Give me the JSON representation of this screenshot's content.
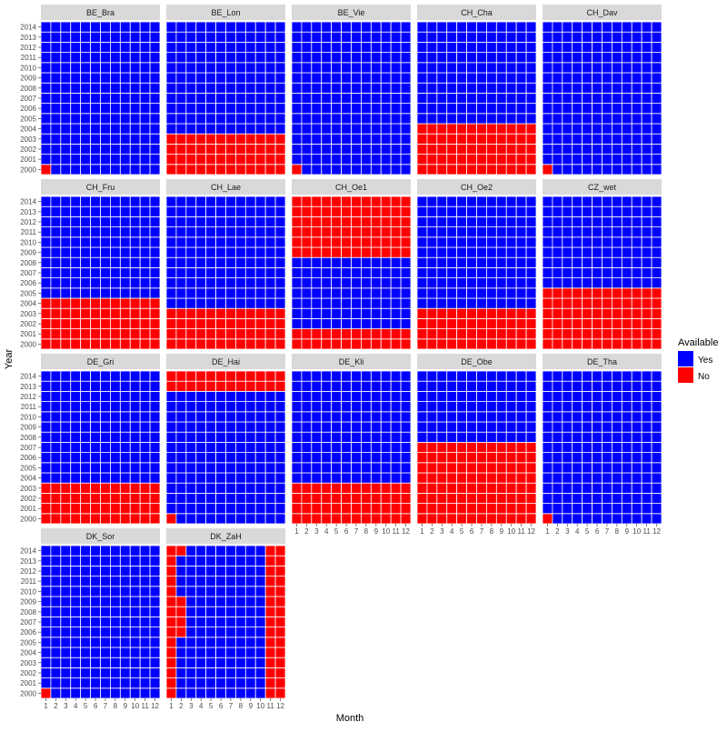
{
  "chart_data": {
    "type": "heatmap",
    "title": "",
    "xlabel": "Month",
    "ylabel": "Year",
    "months": [
      "1",
      "2",
      "3",
      "4",
      "5",
      "6",
      "7",
      "8",
      "9",
      "10",
      "11",
      "12"
    ],
    "years": [
      "2000",
      "2001",
      "2002",
      "2003",
      "2004",
      "2005",
      "2006",
      "2007",
      "2008",
      "2009",
      "2010",
      "2011",
      "2012",
      "2013",
      "2014"
    ],
    "legend": {
      "title": "Available",
      "placement": "right",
      "entries": [
        {
          "label": "Yes",
          "color": "#0000FF"
        },
        {
          "label": "No",
          "color": "#FF0000"
        }
      ]
    },
    "colors": {
      "yes": "#0000FF",
      "no": "#FF0000",
      "strip": "#D9D9D9",
      "grid": "#FFFFFF"
    },
    "note_unavailable_cells_format": "each station lists its unavailable (No) cells as [year, month] or year ranges; all other cells are Yes",
    "stations": [
      {
        "name": "BE_Bra",
        "no_cells": [
          [
            2000,
            1
          ]
        ]
      },
      {
        "name": "BE_Lon",
        "no_years": [
          2000,
          2001,
          2002,
          2003
        ]
      },
      {
        "name": "BE_Vie",
        "no_cells": [
          [
            2000,
            1
          ]
        ]
      },
      {
        "name": "CH_Cha",
        "no_years": [
          2000,
          2001,
          2002,
          2003,
          2004
        ]
      },
      {
        "name": "CH_Dav",
        "no_cells": [
          [
            2000,
            1
          ]
        ]
      },
      {
        "name": "CH_Fru",
        "no_years": [
          2000,
          2001,
          2002,
          2003,
          2004
        ]
      },
      {
        "name": "CH_Lae",
        "no_years": [
          2000,
          2001,
          2002,
          2003
        ]
      },
      {
        "name": "CH_Oe1",
        "no_years": [
          2000,
          2001,
          2009,
          2010,
          2011,
          2012,
          2013,
          2014
        ]
      },
      {
        "name": "CH_Oe2",
        "no_years": [
          2000,
          2001,
          2002,
          2003
        ]
      },
      {
        "name": "CZ_wet",
        "no_years": [
          2000,
          2001,
          2002,
          2003,
          2004,
          2005
        ]
      },
      {
        "name": "DE_Gri",
        "no_years": [
          2000,
          2001,
          2002,
          2003
        ]
      },
      {
        "name": "DE_Hai",
        "no_years": [
          2013,
          2014
        ],
        "no_cells": [
          [
            2000,
            1
          ]
        ]
      },
      {
        "name": "DE_Kli",
        "no_years": [
          2000,
          2001,
          2002,
          2003
        ]
      },
      {
        "name": "DE_Obe",
        "no_years": [
          2000,
          2001,
          2002,
          2003,
          2004,
          2005,
          2006,
          2007
        ]
      },
      {
        "name": "DE_Tha",
        "no_cells": [
          [
            2000,
            1
          ]
        ]
      },
      {
        "name": "DK_Sor",
        "no_cells": [
          [
            2000,
            1
          ]
        ]
      },
      {
        "name": "DK_ZaH",
        "no_months_all_years": [
          1,
          11,
          12
        ],
        "no_cells": [
          [
            2006,
            2
          ],
          [
            2007,
            2
          ],
          [
            2008,
            2
          ],
          [
            2009,
            2
          ],
          [
            2014,
            2
          ]
        ]
      }
    ]
  }
}
